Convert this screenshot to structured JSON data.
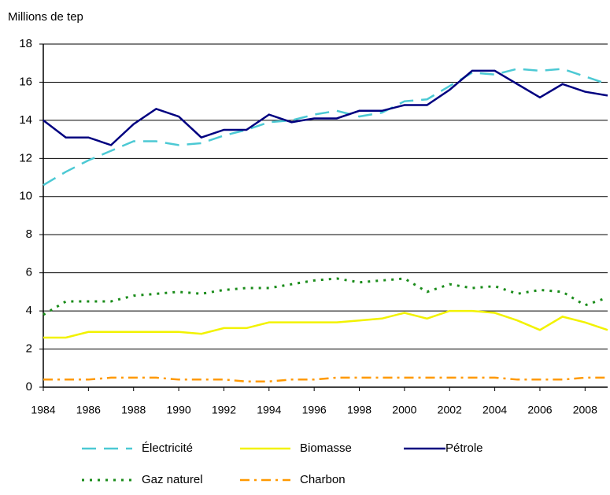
{
  "chart_data": {
    "type": "line",
    "y_label": "Millions de tep",
    "x": [
      1984,
      1985,
      1986,
      1987,
      1988,
      1989,
      1990,
      1991,
      1992,
      1993,
      1994,
      1995,
      1996,
      1997,
      1998,
      1999,
      2000,
      2001,
      2002,
      2003,
      2004,
      2005,
      2006,
      2007,
      2008,
      2009
    ],
    "xlim": [
      1984,
      2009
    ],
    "xticks": [
      1984,
      1986,
      1988,
      1990,
      1992,
      1994,
      1996,
      1998,
      2000,
      2002,
      2004,
      2006,
      2008
    ],
    "ylim": [
      0,
      18
    ],
    "yticks": [
      0,
      2,
      4,
      6,
      8,
      10,
      12,
      14,
      16,
      18
    ],
    "grid": true,
    "series": [
      {
        "name": "Électricité",
        "color": "#4cc9d4",
        "dash": "dashed",
        "values": [
          10.6,
          11.3,
          11.9,
          12.4,
          12.9,
          12.9,
          12.7,
          12.8,
          13.2,
          13.5,
          13.9,
          14.0,
          14.3,
          14.5,
          14.2,
          14.4,
          15.0,
          15.1,
          15.8,
          16.5,
          16.4,
          16.7,
          16.6,
          16.7,
          16.3,
          15.9
        ]
      },
      {
        "name": "Biomasse",
        "color": "#f2f200",
        "dash": "solid",
        "values": [
          2.6,
          2.6,
          2.9,
          2.9,
          2.9,
          2.9,
          2.9,
          2.8,
          3.1,
          3.1,
          3.4,
          3.4,
          3.4,
          3.4,
          3.5,
          3.6,
          3.9,
          3.6,
          4.0,
          4.0,
          3.9,
          3.5,
          3.0,
          3.7,
          3.4,
          3.0
        ]
      },
      {
        "name": "Pétrole",
        "color": "#000080",
        "dash": "solid",
        "values": [
          14.0,
          13.1,
          13.1,
          12.7,
          13.8,
          14.6,
          14.2,
          13.1,
          13.5,
          13.5,
          14.3,
          13.9,
          14.1,
          14.1,
          14.5,
          14.5,
          14.8,
          14.8,
          15.6,
          16.6,
          16.6,
          15.9,
          15.2,
          15.9,
          15.5,
          15.3
        ]
      },
      {
        "name": "Gaz naturel",
        "color": "#1a8c1a",
        "dash": "dotted",
        "values": [
          3.8,
          4.5,
          4.5,
          4.5,
          4.8,
          4.9,
          5.0,
          4.9,
          5.1,
          5.2,
          5.2,
          5.4,
          5.6,
          5.7,
          5.5,
          5.6,
          5.7,
          5.0,
          5.4,
          5.2,
          5.3,
          4.9,
          5.1,
          5.0,
          4.3,
          4.7
        ]
      },
      {
        "name": "Charbon",
        "color": "#ff9900",
        "dash": "dashdot",
        "values": [
          0.4,
          0.4,
          0.4,
          0.5,
          0.5,
          0.5,
          0.4,
          0.4,
          0.4,
          0.3,
          0.3,
          0.4,
          0.4,
          0.5,
          0.5,
          0.5,
          0.5,
          0.5,
          0.5,
          0.5,
          0.5,
          0.4,
          0.4,
          0.4,
          0.5,
          0.5
        ]
      }
    ]
  }
}
